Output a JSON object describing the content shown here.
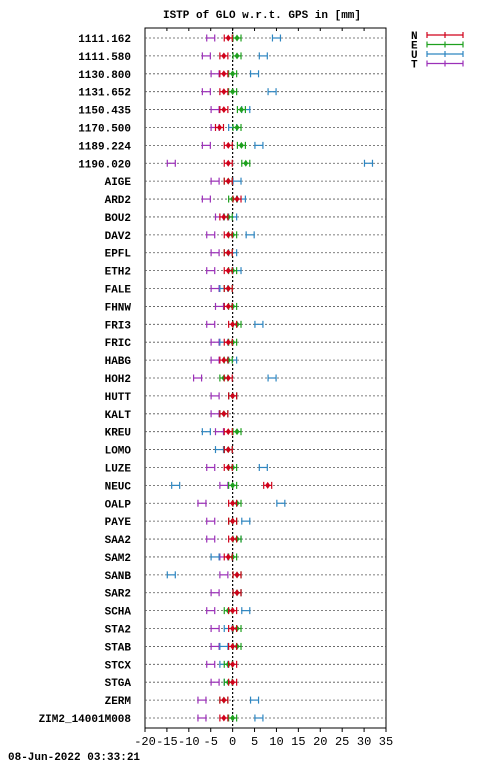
{
  "chart_data": {
    "type": "scatter",
    "title": "ISTP of GLO w.r.t. GPS in [mm]",
    "xlim": [
      -20,
      35
    ],
    "xticks": [
      -20,
      -15,
      -10,
      -5,
      0,
      5,
      10,
      15,
      20,
      25,
      30,
      35
    ],
    "grid": "horizontal dotted lines per station",
    "legend_position": "top-right",
    "timestamp": "08-Jun-2022 03:33:21",
    "series": [
      {
        "name": "N",
        "color": "#d0021b"
      },
      {
        "name": "E",
        "color": "#1ea01e"
      },
      {
        "name": "U",
        "color": "#2e86c1"
      },
      {
        "name": "T",
        "color": "#9b30b8"
      }
    ],
    "stations": [
      {
        "name": "1111.162",
        "N": -1,
        "E": 1,
        "U": 10,
        "T": -5
      },
      {
        "name": "1111.580",
        "N": -2,
        "E": 1,
        "U": 7,
        "T": -6
      },
      {
        "name": "1130.800",
        "N": -2,
        "E": 0,
        "U": 5,
        "T": -4
      },
      {
        "name": "1131.652",
        "N": -2,
        "E": 0,
        "U": 9,
        "T": -6
      },
      {
        "name": "1150.435",
        "N": -2,
        "E": 2,
        "U": 3,
        "T": -4
      },
      {
        "name": "1170.500",
        "N": -3,
        "E": 1,
        "U": 0,
        "T": -4
      },
      {
        "name": "1189.224",
        "N": -1,
        "E": 2,
        "U": 6,
        "T": -6
      },
      {
        "name": "1190.020",
        "N": -1,
        "E": 3,
        "U": 31,
        "T": -14
      },
      {
        "name": "AIGE",
        "N": -1,
        "E": -1,
        "U": 1,
        "T": -4
      },
      {
        "name": "ARD2",
        "N": 1,
        "E": 0,
        "U": 2,
        "T": -6
      },
      {
        "name": "BOU2",
        "N": -2,
        "E": -1,
        "U": 0,
        "T": -3
      },
      {
        "name": "DAV2",
        "N": -1,
        "E": 0,
        "U": 4,
        "T": -5
      },
      {
        "name": "EPFL",
        "N": -1,
        "E": -1,
        "U": 0,
        "T": -4
      },
      {
        "name": "ETH2",
        "N": -1,
        "E": 0,
        "U": 1,
        "T": -5
      },
      {
        "name": "FALE",
        "N": -1,
        "E": -1,
        "U": -2,
        "T": -4
      },
      {
        "name": "FHNW",
        "N": -1,
        "E": 0,
        "U": -1,
        "T": -3
      },
      {
        "name": "FRI3",
        "N": 0,
        "E": 1,
        "U": 6,
        "T": -5
      },
      {
        "name": "FRIC",
        "N": -1,
        "E": 0,
        "U": -2,
        "T": -4
      },
      {
        "name": "HABG",
        "N": -2,
        "E": -1,
        "U": 0,
        "T": -4
      },
      {
        "name": "HOH2",
        "N": -1,
        "E": -2,
        "U": 9,
        "T": -8
      },
      {
        "name": "HUTT",
        "N": 0,
        "E": 0,
        "U": 0,
        "T": -4
      },
      {
        "name": "KALT",
        "N": -2,
        "E": -2,
        "U": -2,
        "T": -4
      },
      {
        "name": "KREU",
        "N": -1,
        "E": 1,
        "U": -6,
        "T": -3
      },
      {
        "name": "LOMO",
        "N": -1,
        "E": -1,
        "U": -3,
        "T": -1
      },
      {
        "name": "LUZE",
        "N": -1,
        "E": 0,
        "U": 7,
        "T": -5
      },
      {
        "name": "NEUC",
        "N": 8,
        "E": 0,
        "U": -13,
        "T": -2
      },
      {
        "name": "OALP",
        "N": 0,
        "E": 1,
        "U": 11,
        "T": -7
      },
      {
        "name": "PAYE",
        "N": 0,
        "E": 0,
        "U": 3,
        "T": -5
      },
      {
        "name": "SAA2",
        "N": 0,
        "E": 1,
        "U": 1,
        "T": -5
      },
      {
        "name": "SAM2",
        "N": -1,
        "E": 0,
        "U": -4,
        "T": -2
      },
      {
        "name": "SANB",
        "N": 1,
        "E": 1,
        "U": -14,
        "T": -2
      },
      {
        "name": "SAR2",
        "N": 1,
        "E": 1,
        "U": 1,
        "T": -4
      },
      {
        "name": "SCHA",
        "N": 0,
        "E": -1,
        "U": 3,
        "T": -5
      },
      {
        "name": "STA2",
        "N": 0,
        "E": 1,
        "U": -1,
        "T": -4
      },
      {
        "name": "STAB",
        "N": 0,
        "E": 1,
        "U": -2,
        "T": -4
      },
      {
        "name": "STCX",
        "N": 0,
        "E": -1,
        "U": -2,
        "T": -5
      },
      {
        "name": "STGA",
        "N": 0,
        "E": -1,
        "U": -1,
        "T": -4
      },
      {
        "name": "ZERM",
        "N": -2,
        "E": -2,
        "U": 5,
        "T": -7
      },
      {
        "name": "ZIM2_14001M008",
        "N": -2,
        "E": 0,
        "U": 6,
        "T": -7
      }
    ]
  }
}
